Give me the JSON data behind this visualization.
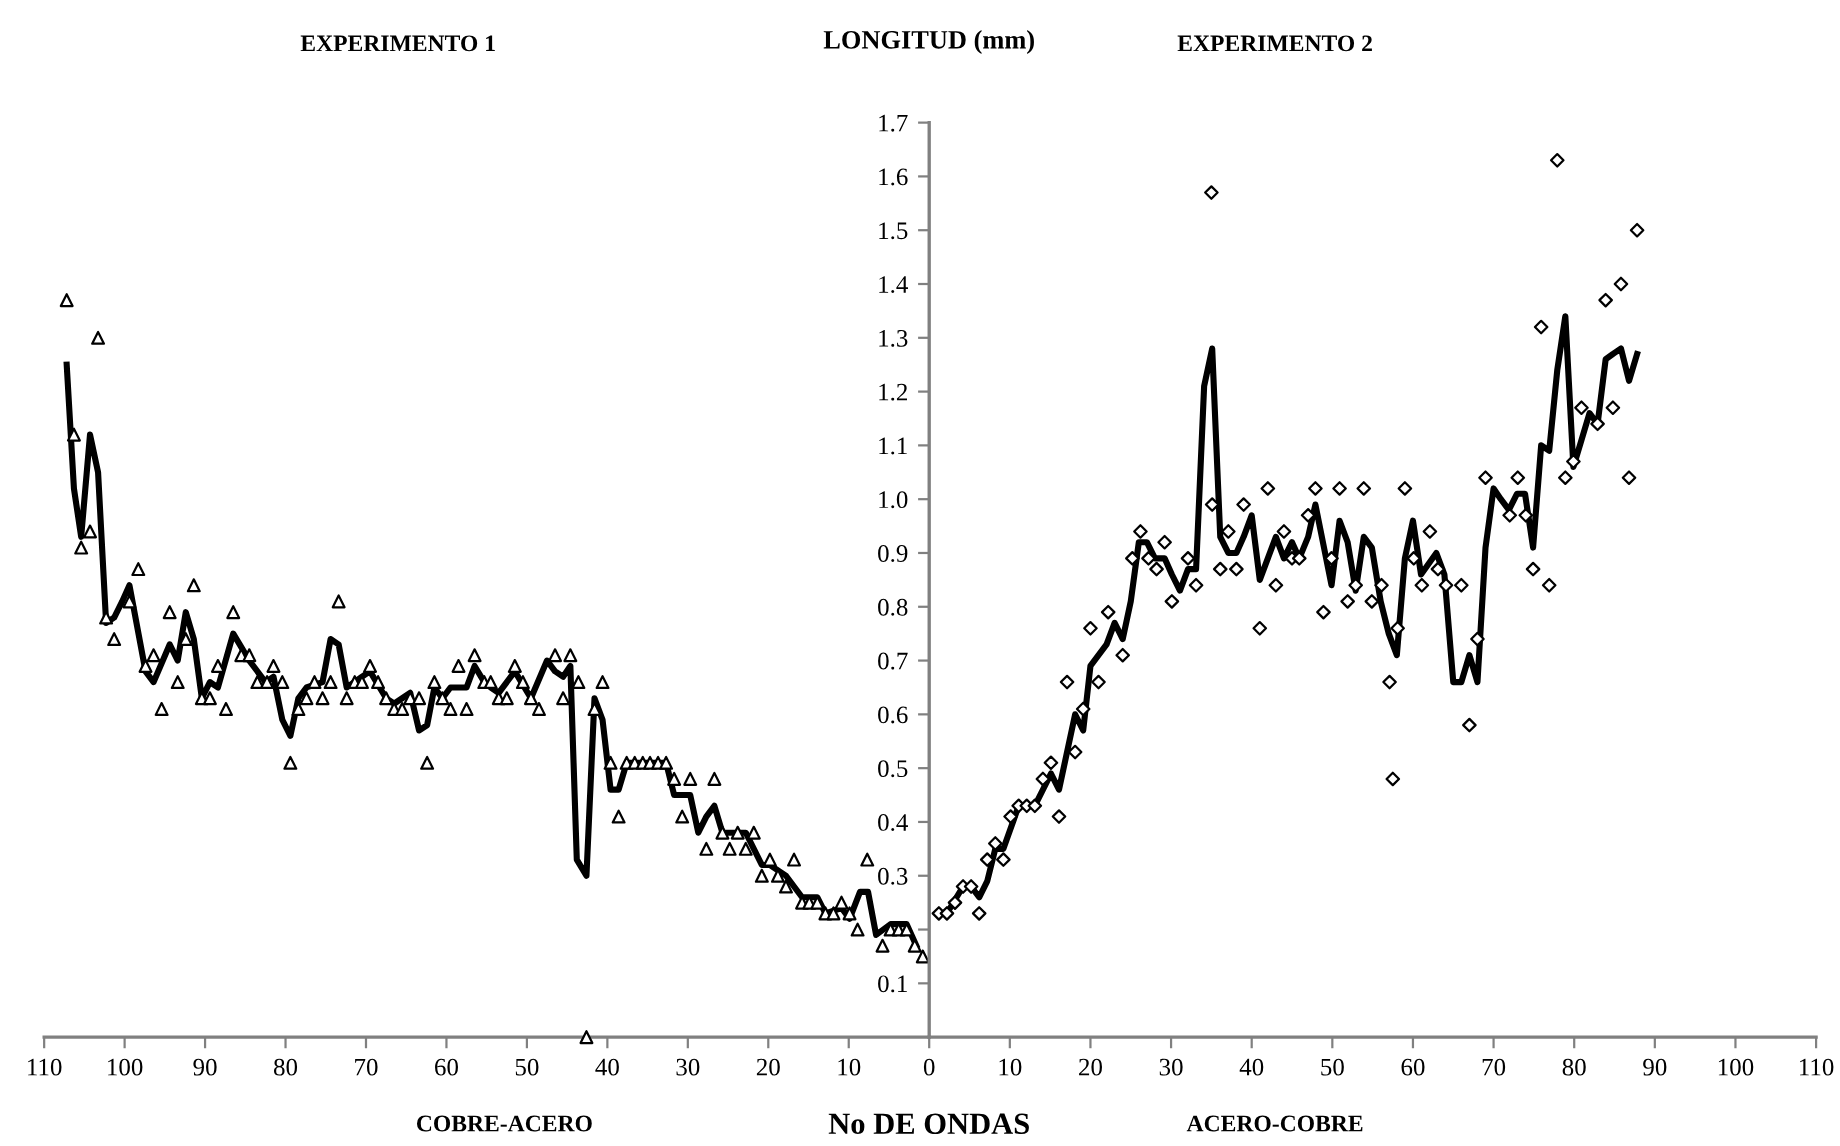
{
  "chart_data": [
    {
      "type": "line",
      "title": "EXPERIMENTO 1",
      "xlabel": "COBRE-ACERO",
      "annotations": [
        "No DE ONDAS"
      ],
      "xlim": [
        110,
        0
      ],
      "xticks": [
        110,
        100,
        90,
        80,
        70,
        60,
        50,
        40,
        30,
        20,
        10
      ],
      "ylim": [
        0,
        1.7
      ],
      "tick_labels": "x",
      "series": [
        {
          "type": "scatter",
          "marker": "triangle",
          "color": "#000000",
          "x": [
            107.2,
            106.3,
            105.4,
            104.3,
            103.3,
            102.3,
            101.3,
            99.4,
            98.3,
            97.4,
            96.4,
            95.4,
            94.4,
            93.4,
            92.4,
            91.4,
            90.4,
            89.4,
            88.4,
            87.4,
            86.5,
            85.5,
            84.5,
            83.5,
            82.3,
            81.5,
            80.4,
            79.4,
            78.4,
            77.4,
            76.4,
            75.4,
            74.4,
            73.4,
            72.4,
            71.4,
            70.5,
            69.5,
            68.5,
            67.5,
            66.5,
            65.5,
            64.5,
            63.4,
            62.4,
            61.5,
            60.5,
            59.5,
            58.5,
            57.5,
            56.5,
            55.3,
            54.5,
            53.5,
            52.5,
            51.5,
            50.5,
            49.5,
            48.5,
            46.5,
            45.5,
            44.6,
            43.6,
            42.6,
            41.6,
            40.6,
            39.6,
            38.6,
            37.6,
            36.6,
            35.6,
            34.7,
            33.7,
            32.7,
            31.7,
            30.7,
            29.7,
            27.7,
            26.7,
            25.7,
            24.8,
            23.8,
            22.8,
            21.8,
            20.8,
            19.8,
            18.8,
            17.8,
            16.8,
            15.8,
            14.9,
            13.9,
            12.9,
            11.9,
            10.9,
            9.9,
            8.9,
            7.7,
            5.8,
            4.8,
            3.8,
            2.8,
            1.8,
            0.8
          ],
          "values": [
            1.37,
            1.12,
            0.91,
            0.94,
            1.3,
            0.78,
            0.74,
            0.81,
            0.87,
            0.69,
            0.71,
            0.61,
            0.79,
            0.66,
            0.74,
            0.84,
            0.63,
            0.63,
            0.69,
            0.61,
            0.79,
            0.71,
            0.71,
            0.66,
            0.66,
            0.69,
            0.66,
            0.51,
            0.61,
            0.63,
            0.66,
            0.63,
            0.66,
            0.81,
            0.63,
            0.66,
            0.66,
            0.69,
            0.66,
            0.63,
            0.61,
            0.61,
            0.63,
            0.63,
            0.51,
            0.66,
            0.63,
            0.61,
            0.69,
            0.61,
            0.71,
            0.66,
            0.66,
            0.63,
            0.63,
            0.69,
            0.66,
            0.63,
            0.61,
            0.71,
            0.63,
            0.71,
            0.66,
            0.0,
            0.61,
            0.66,
            0.51,
            0.41,
            0.51,
            0.51,
            0.51,
            0.51,
            0.51,
            0.51,
            0.48,
            0.41,
            0.48,
            0.35,
            0.48,
            0.38,
            0.35,
            0.38,
            0.35,
            0.38,
            0.3,
            0.33,
            0.3,
            0.28,
            0.33,
            0.25,
            0.25,
            0.25,
            0.23,
            0.23,
            0.25,
            0.23,
            0.2,
            0.33,
            0.17,
            0.2,
            0.2,
            0.2,
            0.17,
            0.15
          ]
        },
        {
          "marker": "none",
          "line_style": "solid",
          "color": "#000000",
          "x": [
            107.2,
            106.3,
            105.4,
            104.3,
            103.3,
            102.3,
            101.3,
            100.3,
            99.4,
            97.4,
            96.4,
            94.4,
            93.4,
            92.4,
            91.4,
            90.4,
            89.4,
            88.4,
            86.5,
            84.5,
            82.5,
            81.5,
            80.4,
            79.4,
            78.4,
            77.4,
            75.4,
            74.4,
            73.4,
            72.4,
            70.5,
            69.5,
            67.5,
            66.5,
            64.5,
            63.4,
            62.4,
            61.5,
            60.5,
            59.5,
            57.5,
            56.5,
            55.3,
            54.5,
            53.5,
            51.5,
            49.5,
            47.5,
            46.5,
            45.5,
            44.6,
            43.8,
            42.6,
            41.6,
            40.6,
            39.6,
            38.6,
            37.6,
            32.7,
            31.7,
            29.7,
            28.7,
            27.7,
            26.7,
            25.7,
            22.8,
            20.8,
            19.8,
            17.8,
            15.8,
            13.9,
            12.9,
            10.9,
            9.9,
            8.6,
            7.6,
            6.6,
            4.8,
            2.8,
            1.6
          ],
          "values": [
            1.25,
            1.02,
            0.93,
            1.12,
            1.05,
            0.77,
            0.78,
            0.81,
            0.84,
            0.68,
            0.66,
            0.73,
            0.7,
            0.79,
            0.74,
            0.63,
            0.66,
            0.65,
            0.75,
            0.7,
            0.66,
            0.67,
            0.59,
            0.56,
            0.63,
            0.65,
            0.66,
            0.74,
            0.73,
            0.65,
            0.67,
            0.68,
            0.63,
            0.62,
            0.64,
            0.57,
            0.58,
            0.65,
            0.63,
            0.65,
            0.65,
            0.69,
            0.66,
            0.65,
            0.64,
            0.68,
            0.63,
            0.7,
            0.68,
            0.67,
            0.69,
            0.33,
            0.3,
            0.63,
            0.59,
            0.46,
            0.46,
            0.51,
            0.51,
            0.45,
            0.45,
            0.38,
            0.41,
            0.43,
            0.38,
            0.38,
            0.32,
            0.32,
            0.3,
            0.26,
            0.26,
            0.23,
            0.24,
            0.22,
            0.27,
            0.27,
            0.19,
            0.21,
            0.21,
            0.17
          ]
        }
      ]
    },
    {
      "type": "line",
      "title": "EXPERIMENTO 2",
      "ylabel": "LONGITUD (mm)",
      "xlabel": "ACERO-COBRE",
      "xlim": [
        0,
        110
      ],
      "xticks": [
        0,
        10,
        20,
        30,
        40,
        50,
        60,
        70,
        80,
        90,
        100,
        110
      ],
      "ylim": [
        0,
        1.7
      ],
      "yticks": [
        0.1,
        {
          "value": 0.2,
          "label": null
        },
        0.3,
        0.4,
        0.5,
        0.6,
        0.7,
        0.8,
        0.9,
        {
          "value": 1,
          "label": "1.0"
        },
        1.1,
        1.2,
        1.3,
        1.4,
        1.5,
        1.6,
        1.7
      ],
      "series": [
        {
          "type": "scatter",
          "marker": "diamond",
          "color": "#000000",
          "x": [
            1.2,
            2.2,
            3.2,
            4.2,
            5.2,
            6.2,
            7.2,
            8.2,
            9.2,
            10.1,
            11.1,
            12.1,
            13.1,
            14.1,
            15.1,
            16.1,
            17.1,
            18.1,
            19.1,
            20.0,
            21.0,
            22.2,
            24.0,
            25.2,
            26.2,
            27.2,
            28.2,
            29.2,
            30.1,
            32.1,
            33.1,
            35.0,
            35.1,
            36.1,
            37.1,
            38.1,
            39.0,
            41.0,
            42.0,
            43.0,
            44.0,
            45.0,
            45.9,
            47.0,
            47.9,
            48.9,
            49.9,
            50.9,
            51.9,
            52.9,
            53.9,
            54.9,
            56.1,
            57.1,
            57.5,
            58.1,
            59.0,
            60.1,
            61.1,
            62.1,
            63.1,
            64.1,
            66.0,
            67.0,
            68.0,
            69.0,
            72.0,
            73.0,
            74.0,
            74.9,
            75.9,
            76.9,
            77.9,
            78.9,
            79.9,
            80.9,
            82.9,
            83.9,
            84.8,
            85.8,
            86.8,
            87.8
          ],
          "values": [
            0.23,
            0.23,
            0.25,
            0.28,
            0.28,
            0.23,
            0.33,
            0.36,
            0.33,
            0.41,
            0.43,
            0.43,
            0.43,
            0.48,
            0.51,
            0.41,
            0.66,
            0.53,
            0.61,
            0.76,
            0.66,
            0.79,
            0.71,
            0.89,
            0.94,
            0.89,
            0.87,
            0.92,
            0.81,
            0.89,
            0.84,
            1.57,
            0.99,
            0.87,
            0.94,
            0.87,
            0.99,
            0.76,
            1.02,
            0.84,
            0.94,
            0.89,
            0.89,
            0.97,
            1.02,
            0.79,
            0.89,
            1.02,
            0.81,
            0.84,
            1.02,
            0.81,
            0.84,
            0.66,
            0.48,
            0.76,
            1.02,
            0.89,
            0.84,
            0.94,
            0.87,
            0.84,
            0.84,
            0.58,
            0.74,
            1.04,
            0.97,
            1.04,
            0.97,
            0.87,
            1.32,
            0.84,
            1.63,
            1.04,
            1.07,
            1.17,
            1.14,
            1.37,
            1.17,
            1.4,
            1.04,
            1.5
          ]
        },
        {
          "marker": "none",
          "line_style": "solid",
          "color": "#000000",
          "x": [
            2.2,
            4.2,
            5.2,
            6.2,
            7.2,
            8.2,
            9.2,
            11.1,
            13.1,
            15.1,
            16.1,
            18.1,
            19.1,
            20.0,
            21.0,
            22.0,
            23.0,
            24.0,
            25.0,
            26.0,
            27.0,
            28.0,
            29.2,
            30.1,
            31.1,
            32.1,
            33.1,
            34.1,
            35.1,
            36.1,
            37.1,
            38.1,
            39.0,
            40.0,
            41.0,
            43.0,
            44.0,
            45.0,
            45.9,
            47.0,
            47.9,
            49.9,
            50.9,
            51.9,
            52.9,
            53.9,
            54.9,
            56.0,
            57.0,
            58.0,
            59.0,
            60.0,
            61.0,
            62.9,
            63.9,
            65.0,
            66.0,
            67.0,
            68.0,
            69.0,
            70.0,
            70.9,
            71.9,
            72.9,
            73.9,
            74.9,
            75.9,
            76.9,
            77.9,
            78.9,
            79.9,
            80.9,
            81.9,
            82.9,
            83.9,
            84.8,
            85.8,
            86.8,
            87.8
          ],
          "values": [
            0.23,
            0.28,
            0.28,
            0.26,
            0.29,
            0.35,
            0.35,
            0.43,
            0.43,
            0.49,
            0.46,
            0.6,
            0.57,
            0.69,
            0.71,
            0.73,
            0.77,
            0.74,
            0.81,
            0.92,
            0.92,
            0.89,
            0.89,
            0.86,
            0.83,
            0.87,
            0.87,
            1.21,
            1.28,
            0.93,
            0.9,
            0.9,
            0.93,
            0.97,
            0.85,
            0.93,
            0.89,
            0.92,
            0.89,
            0.93,
            0.99,
            0.84,
            0.96,
            0.92,
            0.83,
            0.93,
            0.91,
            0.81,
            0.75,
            0.71,
            0.89,
            0.96,
            0.86,
            0.9,
            0.86,
            0.66,
            0.66,
            0.71,
            0.66,
            0.91,
            1.02,
            1.0,
            0.98,
            1.01,
            1.01,
            0.91,
            1.1,
            1.09,
            1.24,
            1.34,
            1.06,
            1.11,
            1.16,
            1.14,
            1.26,
            1.27,
            1.28,
            1.22,
            1.27
          ]
        }
      ]
    }
  ]
}
